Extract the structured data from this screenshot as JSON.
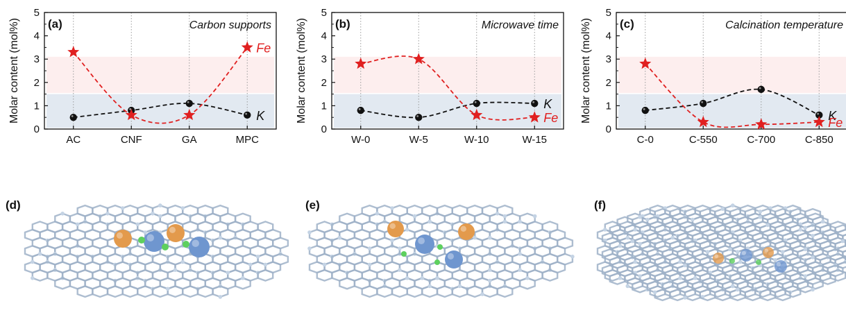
{
  "colors": {
    "k_series": "#111111",
    "fe_series": "#e02020",
    "band_fe": "#fdeeee",
    "band_k": "#e2e9f1",
    "graphene": "#c4d3e4",
    "graphene_stroke": "#9fb2c8",
    "atom_orange": "#e39a4c",
    "atom_blue": "#6f96cf",
    "atom_green": "#5ed05e"
  },
  "chart_data": [
    {
      "type": "line",
      "panel_label": "(a)",
      "title": "Carbon supports",
      "ylabel": "Molar content (mol%)",
      "ylim": [
        0,
        5
      ],
      "yticks": [
        "0",
        "1",
        "2",
        "3",
        "4",
        "5"
      ],
      "bands": [
        [
          0,
          1.5
        ],
        [
          1.5,
          3.1
        ]
      ],
      "categories": [
        "AC",
        "CNF",
        "GA",
        "MPC"
      ],
      "series": [
        {
          "name": "K",
          "marker": "circle",
          "values": [
            0.5,
            0.8,
            1.1,
            0.6
          ],
          "label_at": 3
        },
        {
          "name": "Fe",
          "marker": "star",
          "values": [
            3.3,
            0.6,
            0.6,
            3.5
          ],
          "label_at": 3
        }
      ]
    },
    {
      "type": "line",
      "panel_label": "(b)",
      "title": "Microwave time",
      "ylabel": "Molar content (mol%)",
      "ylim": [
        0,
        5
      ],
      "yticks": [
        "0",
        "1",
        "2",
        "3",
        "4",
        "5"
      ],
      "bands": [
        [
          0,
          1.5
        ],
        [
          1.5,
          3.1
        ]
      ],
      "categories": [
        "W-0",
        "W-5",
        "W-10",
        "W-15"
      ],
      "series": [
        {
          "name": "K",
          "marker": "circle",
          "values": [
            0.8,
            0.5,
            1.1,
            1.1
          ],
          "label_at": 3
        },
        {
          "name": "Fe",
          "marker": "star",
          "values": [
            2.8,
            3.0,
            0.6,
            0.5
          ],
          "label_at": 3
        }
      ]
    },
    {
      "type": "line",
      "panel_label": "(c)",
      "title": "Calcination temperature",
      "ylabel": "Molar content (mol%)",
      "ylim": [
        0,
        5
      ],
      "yticks": [
        "0",
        "1",
        "2",
        "3",
        "4",
        "5"
      ],
      "bands": [
        [
          0,
          1.5
        ],
        [
          1.5,
          3.1
        ]
      ],
      "categories": [
        "C-0",
        "C-550",
        "C-700",
        "C-850"
      ],
      "series": [
        {
          "name": "K",
          "marker": "circle",
          "values": [
            0.8,
            1.1,
            1.7,
            0.6
          ],
          "label_at": 3
        },
        {
          "name": "Fe",
          "marker": "star",
          "values": [
            2.8,
            0.3,
            0.2,
            0.3
          ],
          "label_at": 3
        }
      ]
    }
  ],
  "structures": [
    {
      "panel_label": "(d)"
    },
    {
      "panel_label": "(e)"
    },
    {
      "panel_label": "(f)"
    }
  ]
}
